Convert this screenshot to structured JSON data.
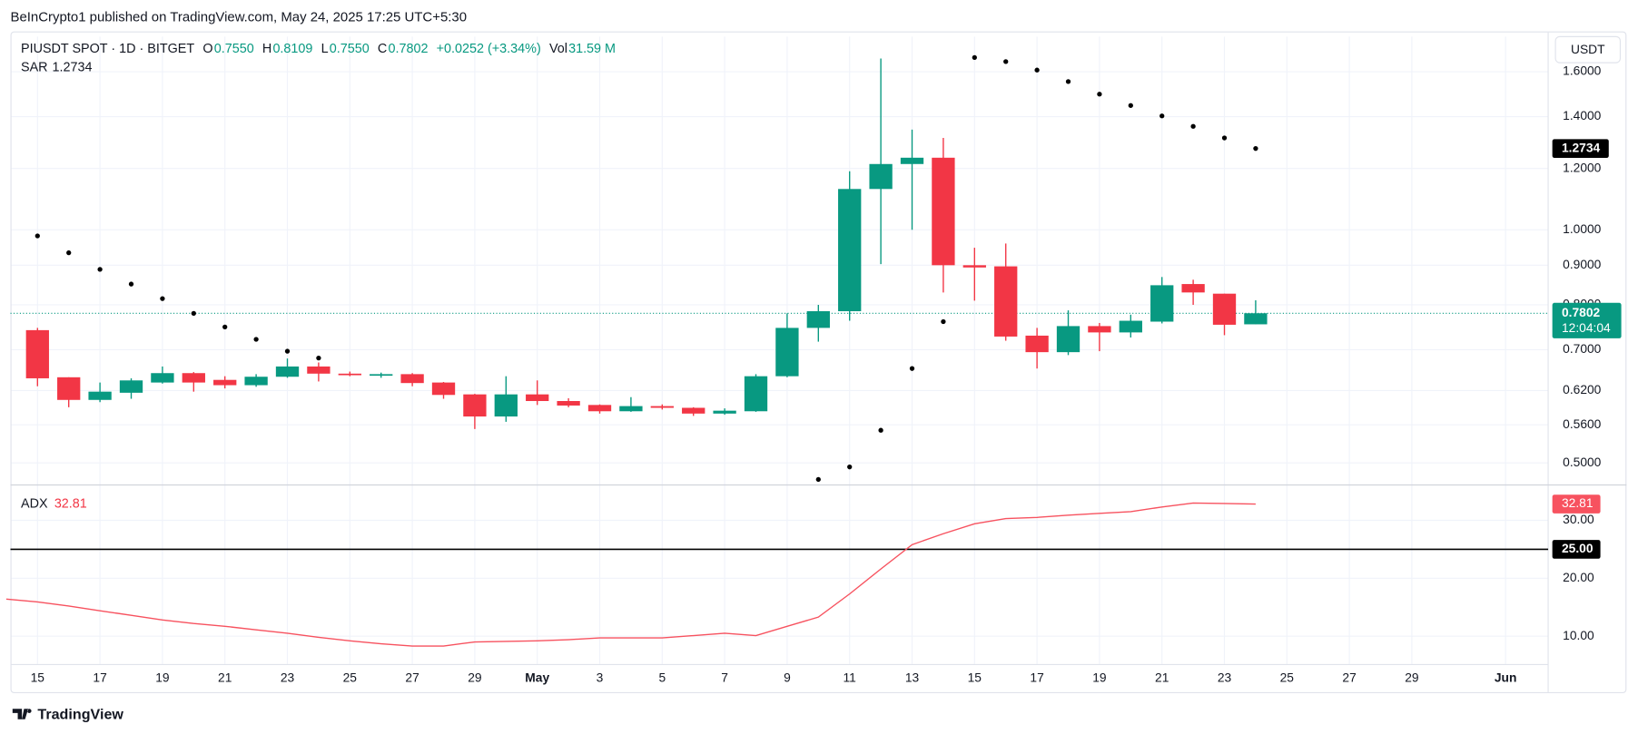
{
  "header": "BeInCrypto1 published on TradingView.com, May 24, 2025 17:25 UTC+5:30",
  "footer": "TradingView",
  "chart_data": {
    "type": "candlestick",
    "symbol": "PIUSDT SPOT · 1D · BITGET",
    "ohlc_legend": [
      {
        "label": "O",
        "value": "0.7550"
      },
      {
        "label": "H",
        "value": "0.8109"
      },
      {
        "label": "L",
        "value": "0.7550"
      },
      {
        "label": "C",
        "value": "0.7802"
      }
    ],
    "change": "+0.0252 (+3.34%)",
    "volume": {
      "label": "Vol",
      "value": "31.59 M"
    },
    "currency": "USDT",
    "last_price_label": "0.7802",
    "countdown": "12:04:04",
    "up_color": "#089981",
    "down_color": "#f23645",
    "log_scale": true,
    "grid": true,
    "categories": [
      "Apr 14",
      "Apr 15",
      "Apr 16",
      "Apr 17",
      "Apr 18",
      "Apr 19",
      "Apr 20",
      "Apr 21",
      "Apr 22",
      "Apr 23",
      "Apr 24",
      "Apr 25",
      "Apr 26",
      "Apr 27",
      "Apr 28",
      "Apr 29",
      "Apr 30",
      "May 1",
      "May 2",
      "May 3",
      "May 4",
      "May 5",
      "May 6",
      "May 7",
      "May 8",
      "May 9",
      "May 10",
      "May 11",
      "May 12",
      "May 13",
      "May 14",
      "May 15",
      "May 16",
      "May 17",
      "May 18",
      "May 19",
      "May 20",
      "May 21",
      "May 22",
      "May 23",
      "May 24",
      "May 25",
      "May 26",
      "May 27",
      "May 28",
      "May 29",
      "May 30",
      "May 31",
      "Jun 1"
    ],
    "open": [
      null,
      0.742,
      0.645,
      0.603,
      0.616,
      0.635,
      0.653,
      0.64,
      0.63,
      0.646,
      0.666,
      0.652,
      0.649,
      0.651,
      0.635,
      0.613,
      0.574,
      0.613,
      0.601,
      0.594,
      0.583,
      0.592,
      0.589,
      0.579,
      0.583,
      0.647,
      0.747,
      0.785,
      1.129,
      1.216,
      1.239,
      0.9,
      0.897,
      0.73,
      0.695,
      0.751,
      0.737,
      0.761,
      0.851,
      0.827,
      0.755,
      null,
      null,
      null,
      null,
      null,
      null,
      null,
      null
    ],
    "high": [
      null,
      0.747,
      0.645,
      0.635,
      0.643,
      0.666,
      0.655,
      0.647,
      0.651,
      0.682,
      0.674,
      0.656,
      0.654,
      0.653,
      0.636,
      0.614,
      0.647,
      0.639,
      0.606,
      0.595,
      0.608,
      0.595,
      0.59,
      0.588,
      0.651,
      0.78,
      0.8,
      1.19,
      1.664,
      1.347,
      1.314,
      0.948,
      0.96,
      0.747,
      0.787,
      0.758,
      0.777,
      0.869,
      0.862,
      0.827,
      0.8109,
      null,
      null,
      null,
      null,
      null,
      null,
      null,
      null
    ],
    "low": [
      null,
      0.628,
      0.59,
      0.599,
      0.605,
      0.633,
      0.618,
      0.624,
      0.627,
      0.644,
      0.637,
      0.647,
      0.644,
      0.628,
      0.605,
      0.553,
      0.565,
      0.594,
      0.59,
      0.579,
      0.582,
      0.586,
      0.575,
      0.577,
      0.582,
      0.645,
      0.717,
      0.763,
      0.903,
      1.0,
      0.83,
      0.81,
      0.719,
      0.662,
      0.689,
      0.697,
      0.726,
      0.757,
      0.8,
      0.731,
      0.755,
      null,
      null,
      null,
      null,
      null,
      null,
      null,
      null
    ],
    "close": [
      null,
      0.643,
      0.603,
      0.618,
      0.639,
      0.653,
      0.635,
      0.63,
      0.646,
      0.666,
      0.652,
      0.649,
      0.651,
      0.634,
      0.612,
      0.574,
      0.613,
      0.601,
      0.593,
      0.583,
      0.592,
      0.589,
      0.579,
      0.584,
      0.647,
      0.747,
      0.785,
      1.129,
      1.216,
      1.239,
      0.9,
      0.894,
      0.728,
      0.695,
      0.751,
      0.737,
      0.763,
      0.848,
      0.83,
      0.754,
      0.7802,
      null,
      null,
      null,
      null,
      null,
      null,
      null,
      null
    ],
    "series": [
      {
        "name": "SAR",
        "color": "#000000",
        "last_label": "1.2734",
        "values": [
          null,
          0.982,
          0.934,
          0.889,
          0.851,
          0.815,
          0.78,
          0.749,
          0.722,
          0.697,
          0.683,
          null,
          null,
          null,
          null,
          null,
          null,
          null,
          null,
          null,
          null,
          null,
          null,
          null,
          null,
          null,
          0.476,
          0.494,
          0.551,
          0.662,
          0.761,
          1.669,
          1.649,
          1.608,
          1.554,
          1.497,
          1.447,
          1.403,
          1.36,
          1.314,
          1.2734,
          null,
          null,
          null,
          null,
          null,
          null,
          null,
          null
        ]
      }
    ],
    "ylim": [
      0.469,
      1.776
    ],
    "yticks": [
      {
        "value": 0.5,
        "label": "0.5000"
      },
      {
        "value": 0.56,
        "label": "0.5600"
      },
      {
        "value": 0.62,
        "label": "0.6200"
      },
      {
        "value": 0.7,
        "label": "0.7000"
      },
      {
        "value": 0.8,
        "label": "0.8000"
      },
      {
        "value": 0.9,
        "label": "0.9000"
      },
      {
        "value": 1,
        "label": "1.0000"
      },
      {
        "value": 1.2,
        "label": "1.2000"
      },
      {
        "value": 1.4,
        "label": "1.4000"
      },
      {
        "value": 1.6,
        "label": "1.6000"
      }
    ],
    "xticks": [
      {
        "value": "Apr 15",
        "label": "15"
      },
      {
        "value": "Apr 17",
        "label": "17"
      },
      {
        "value": "Apr 19",
        "label": "19"
      },
      {
        "value": "Apr 21",
        "label": "21"
      },
      {
        "value": "Apr 23",
        "label": "23"
      },
      {
        "value": "Apr 25",
        "label": "25"
      },
      {
        "value": "Apr 27",
        "label": "27"
      },
      {
        "value": "Apr 29",
        "label": "29"
      },
      {
        "value": "May 1",
        "label": "May"
      },
      {
        "value": "May 3",
        "label": "3"
      },
      {
        "value": "May 5",
        "label": "5"
      },
      {
        "value": "May 7",
        "label": "7"
      },
      {
        "value": "May 9",
        "label": "9"
      },
      {
        "value": "May 11",
        "label": "11"
      },
      {
        "value": "May 13",
        "label": "13"
      },
      {
        "value": "May 15",
        "label": "15"
      },
      {
        "value": "May 17",
        "label": "17"
      },
      {
        "value": "May 19",
        "label": "19"
      },
      {
        "value": "May 21",
        "label": "21"
      },
      {
        "value": "May 23",
        "label": "23"
      },
      {
        "value": "May 25",
        "label": "25"
      },
      {
        "value": "May 27",
        "label": "27"
      },
      {
        "value": "May 29",
        "label": "29"
      },
      {
        "value": "Jun 1",
        "label": "Jun"
      }
    ],
    "indicator": {
      "type": "line",
      "name": "ADX",
      "color": "#f7525f",
      "last_label": "32.81",
      "values": [
        16.4,
        15.9,
        15.2,
        14.4,
        13.6,
        12.8,
        12.2,
        11.7,
        11.1,
        10.5,
        9.8,
        9.2,
        8.7,
        8.3,
        8.3,
        9.0,
        9.1,
        9.2,
        9.4,
        9.7,
        9.7,
        9.7,
        10.1,
        10.5,
        10.1,
        11.7,
        13.3,
        17.3,
        21.6,
        25.8,
        27.7,
        29.4,
        30.3,
        30.5,
        30.9,
        31.2,
        31.5,
        32.3,
        33.0,
        32.9,
        32.81,
        null,
        null,
        null,
        null,
        null,
        null,
        null,
        null
      ],
      "ylim": [
        5.2,
        36.2
      ],
      "yticks": [
        {
          "value": 10,
          "label": "10.00"
        },
        {
          "value": 20,
          "label": "20.00"
        },
        {
          "value": 30,
          "label": "30.00"
        }
      ],
      "reference_line": {
        "value": 25,
        "label": "25.00",
        "color": "#000000"
      }
    }
  }
}
